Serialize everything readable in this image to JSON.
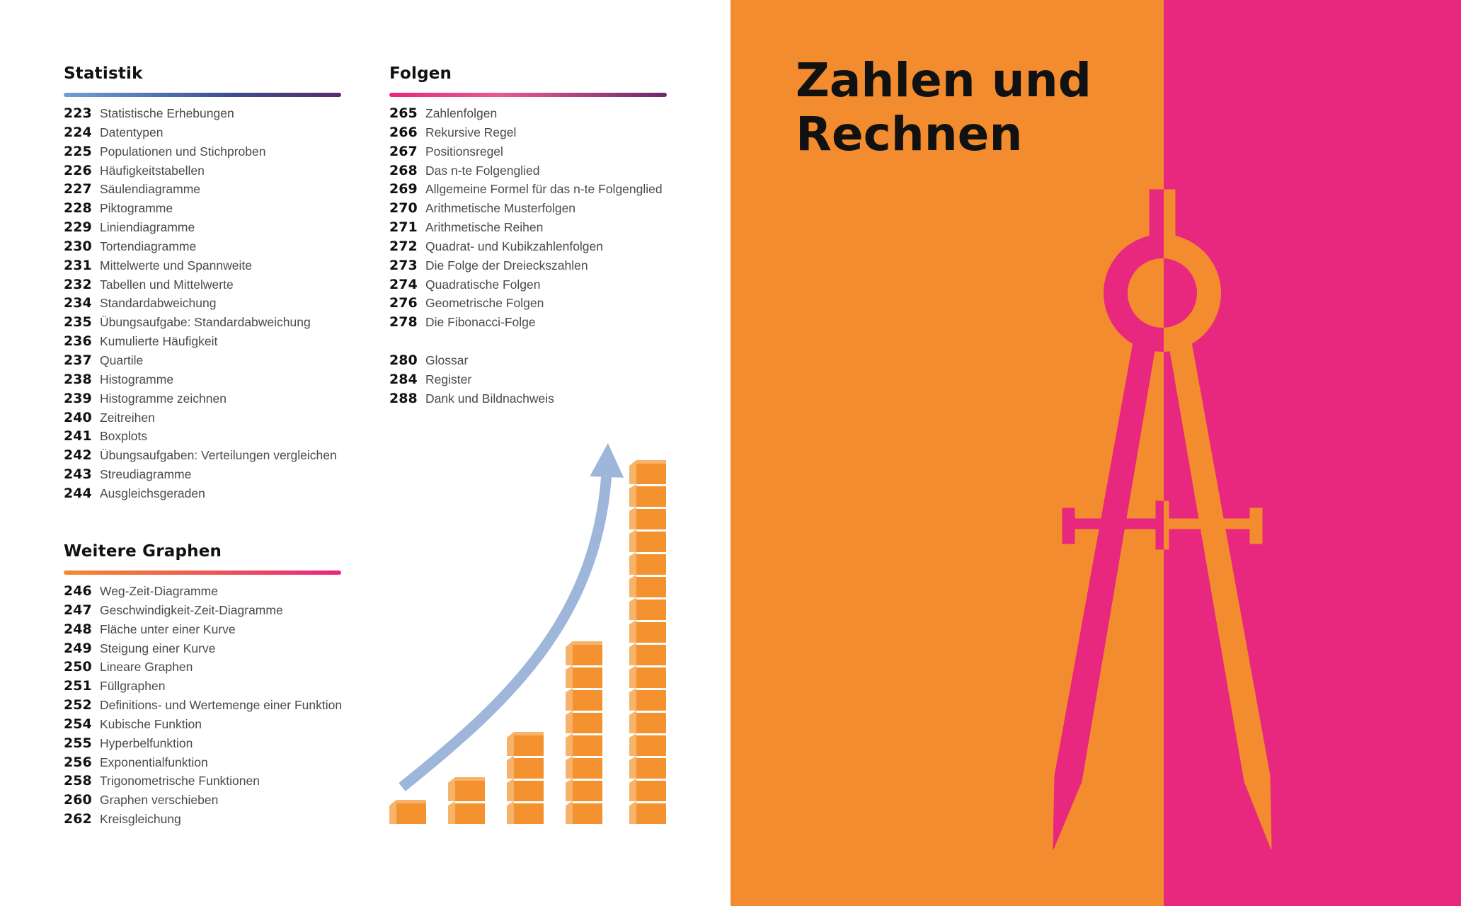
{
  "colors": {
    "orange": "#F28C2E",
    "pink": "#E8277F",
    "blue_arrow": "#9DB6D9",
    "block_orange": "#F3922F",
    "block_light": "#F8B36B"
  },
  "statistik": {
    "title": "Statistik",
    "entries": [
      {
        "num": "223",
        "label": "Statistische Erhebungen"
      },
      {
        "num": "224",
        "label": "Datentypen"
      },
      {
        "num": "225",
        "label": "Populationen und Stichproben"
      },
      {
        "num": "226",
        "label": "Häufigkeitstabellen"
      },
      {
        "num": "227",
        "label": "Säulendiagramme"
      },
      {
        "num": "228",
        "label": "Piktogramme"
      },
      {
        "num": "229",
        "label": "Liniendiagramme"
      },
      {
        "num": "230",
        "label": "Tortendiagramme"
      },
      {
        "num": "231",
        "label": "Mittelwerte und Spannweite"
      },
      {
        "num": "232",
        "label": "Tabellen und Mittelwerte"
      },
      {
        "num": "234",
        "label": "Standardabweichung"
      },
      {
        "num": "235",
        "label": "Übungsaufgabe: Standardabweichung"
      },
      {
        "num": "236",
        "label": "Kumulierte Häufigkeit"
      },
      {
        "num": "237",
        "label": "Quartile"
      },
      {
        "num": "238",
        "label": "Histogramme"
      },
      {
        "num": "239",
        "label": "Histogramme zeichnen"
      },
      {
        "num": "240",
        "label": "Zeitreihen"
      },
      {
        "num": "241",
        "label": "Boxplots"
      },
      {
        "num": "242",
        "label": "Übungsaufgaben: Verteilungen vergleichen"
      },
      {
        "num": "243",
        "label": "Streudiagramme"
      },
      {
        "num": "244",
        "label": "Ausgleichsgeraden"
      }
    ]
  },
  "weitere_graphen": {
    "title": "Weitere Graphen",
    "entries": [
      {
        "num": "246",
        "label": "Weg-Zeit-Diagramme"
      },
      {
        "num": "247",
        "label": "Geschwindigkeit-Zeit-Diagramme"
      },
      {
        "num": "248",
        "label": "Fläche unter einer Kurve"
      },
      {
        "num": "249",
        "label": "Steigung einer Kurve"
      },
      {
        "num": "250",
        "label": "Lineare Graphen"
      },
      {
        "num": "251",
        "label": "Füllgraphen"
      },
      {
        "num": "252",
        "label": "Definitions- und Wertemenge einer Funktion"
      },
      {
        "num": "254",
        "label": "Kubische Funktion"
      },
      {
        "num": "255",
        "label": "Hyperbelfunktion"
      },
      {
        "num": "256",
        "label": "Exponentialfunktion"
      },
      {
        "num": "258",
        "label": "Trigonometrische Funktionen"
      },
      {
        "num": "260",
        "label": "Graphen verschieben"
      },
      {
        "num": "262",
        "label": "Kreisgleichung"
      }
    ]
  },
  "folgen": {
    "title": "Folgen",
    "entries": [
      {
        "num": "265",
        "label": "Zahlenfolgen"
      },
      {
        "num": "266",
        "label": "Rekursive Regel"
      },
      {
        "num": "267",
        "label": "Positionsregel"
      },
      {
        "num": "268",
        "label": "Das n-te Folgenglied"
      },
      {
        "num": "269",
        "label": "Allgemeine Formel für das n-te Folgenglied"
      },
      {
        "num": "270",
        "label": "Arithmetische Musterfolgen"
      },
      {
        "num": "271",
        "label": "Arithmetische Reihen"
      },
      {
        "num": "272",
        "label": "Quadrat- und Kubikzahlenfolgen"
      },
      {
        "num": "273",
        "label": "Die Folge der Dreieckszahlen"
      },
      {
        "num": "274",
        "label": "Quadratische Folgen"
      },
      {
        "num": "276",
        "label": "Geometrische Folgen"
      },
      {
        "num": "278",
        "label": "Die Fibonacci-Folge"
      }
    ],
    "appendix": [
      {
        "num": "280",
        "label": "Glossar"
      },
      {
        "num": "284",
        "label": "Register"
      },
      {
        "num": "288",
        "label": "Dank und Bildnachweis"
      }
    ]
  },
  "block_columns": [
    1,
    2,
    4,
    8,
    16
  ],
  "chapter": {
    "title_line1": "Zahlen und",
    "title_line2": "Rechnen"
  }
}
